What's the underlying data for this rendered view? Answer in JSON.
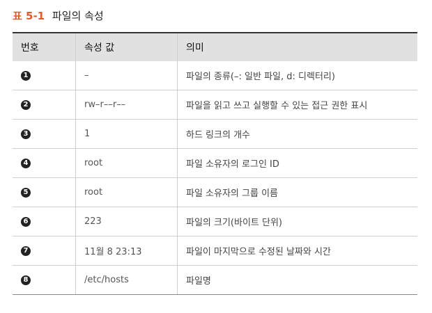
{
  "caption": {
    "number": "표 5-1",
    "title": "파일의 속성"
  },
  "colors": {
    "accent": "#e05a2b",
    "header_bg": "#e1e1e1",
    "badge": "#222222"
  },
  "table": {
    "headers": [
      "번호",
      "속성 값",
      "의미"
    ],
    "rows": [
      {
        "num": "1",
        "value": "–",
        "meaning": "파일의 종류(–: 일반 파일, d: 디렉터리)"
      },
      {
        "num": "2",
        "value": "rw–r––r––",
        "meaning": "파일을 읽고 쓰고 실행할 수 있는 접근 권한 표시"
      },
      {
        "num": "3",
        "value": "1",
        "meaning": "하드 링크의 개수"
      },
      {
        "num": "4",
        "value": "root",
        "meaning": "파일 소유자의 로그인 ID"
      },
      {
        "num": "5",
        "value": "root",
        "meaning": "파일 소유자의 그룹 이름"
      },
      {
        "num": "6",
        "value": "223",
        "meaning": "파일의 크기(바이트 단위)"
      },
      {
        "num": "7",
        "value": "11월  8 23:13",
        "meaning": "파일이 마지막으로 수정된 날짜와 시간"
      },
      {
        "num": "8",
        "value": "/etc/hosts",
        "meaning": "파일명"
      }
    ]
  }
}
